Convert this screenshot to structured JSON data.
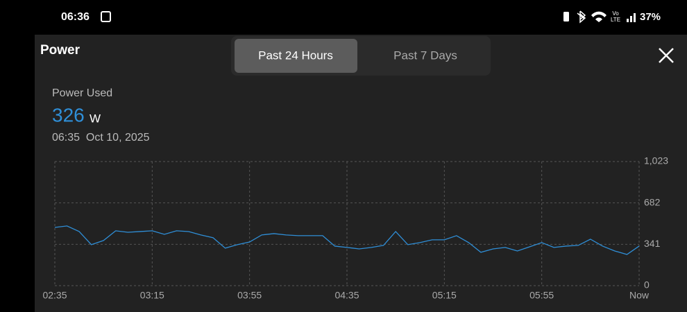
{
  "status_bar": {
    "time": "06:36",
    "battery": "37%"
  },
  "header": {
    "title": "Power",
    "tabs": [
      "Past 24 Hours",
      "Past 7 Days"
    ]
  },
  "summary": {
    "label": "Power Used",
    "value": "326",
    "unit": "W",
    "timestamp": "06:35  Oct 10, 2025"
  },
  "chart_data": {
    "type": "line",
    "categories": [
      "02:35",
      null,
      null,
      null,
      null,
      null,
      null,
      null,
      "03:15",
      null,
      null,
      null,
      null,
      null,
      null,
      null,
      "03:55",
      null,
      null,
      null,
      null,
      null,
      null,
      null,
      "04:35",
      null,
      null,
      null,
      null,
      null,
      null,
      null,
      "05:15",
      null,
      null,
      null,
      null,
      null,
      null,
      null,
      "05:55",
      null,
      null,
      null,
      null,
      null,
      null,
      null,
      "Now"
    ],
    "series": [
      {
        "name": "Power Used",
        "color": "#2f8fd8",
        "values": [
          480,
          492,
          446,
          338,
          372,
          452,
          440,
          446,
          452,
          423,
          452,
          446,
          418,
          395,
          309,
          338,
          360,
          418,
          429,
          418,
          412,
          412,
          412,
          326,
          315,
          303,
          315,
          332,
          446,
          338,
          355,
          378,
          378,
          412,
          355,
          275,
          303,
          315,
          286,
          320,
          355,
          315,
          326,
          332,
          383,
          326,
          286,
          257,
          326
        ]
      }
    ],
    "ylim": [
      0,
      1023
    ],
    "yticks": [
      0,
      341,
      682,
      {
        "value": 1023,
        "label": "1,023"
      }
    ],
    "grid": true
  }
}
